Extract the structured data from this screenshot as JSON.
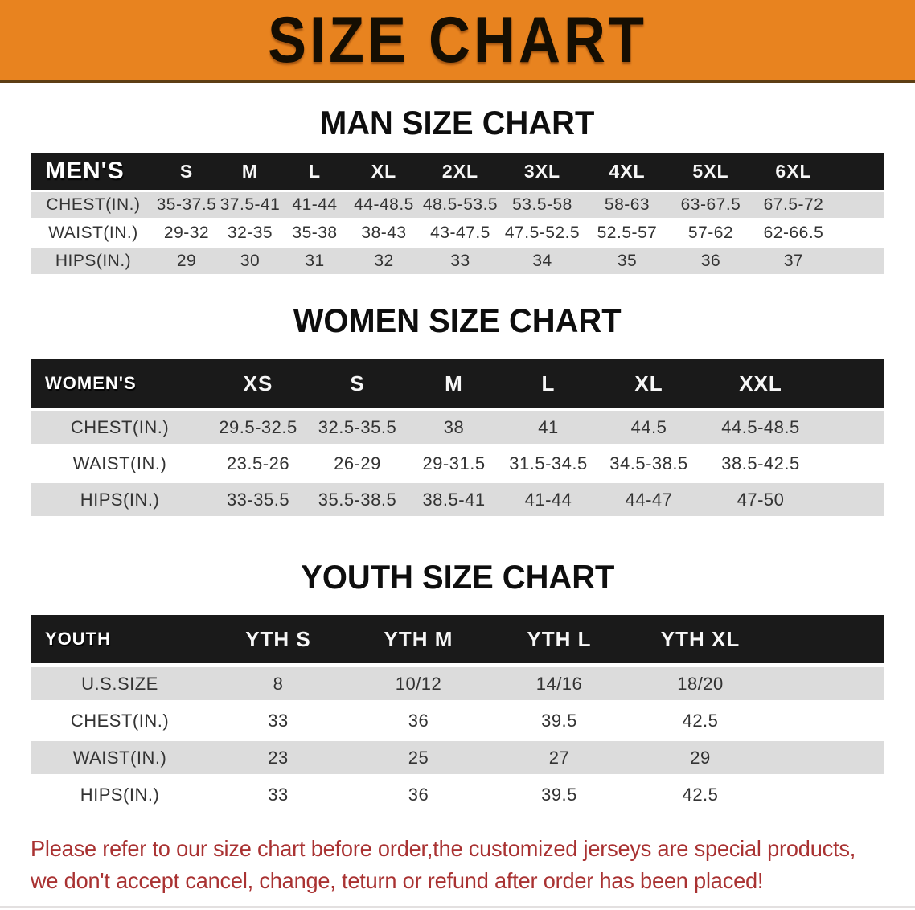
{
  "banner": {
    "title": "SIZE CHART"
  },
  "sections": {
    "men": {
      "heading": "MAN SIZE CHART",
      "header": [
        "MEN'S",
        "S",
        "M",
        "L",
        "XL",
        "2XL",
        "3XL",
        "4XL",
        "5XL",
        "6XL"
      ],
      "rows": [
        {
          "label": "CHEST(IN.)",
          "cells": [
            "35-37.5",
            "37.5-41",
            "41-44",
            "44-48.5",
            "48.5-53.5",
            "53.5-58",
            "58-63",
            "63-67.5",
            "67.5-72"
          ]
        },
        {
          "label": "WAIST(IN.)",
          "cells": [
            "29-32",
            "32-35",
            "35-38",
            "38-43",
            "43-47.5",
            "47.5-52.5",
            "52.5-57",
            "57-62",
            "62-66.5"
          ]
        },
        {
          "label": "HIPS(IN.)",
          "cells": [
            "29",
            "30",
            "31",
            "32",
            "33",
            "34",
            "35",
            "36",
            "37"
          ]
        }
      ]
    },
    "women": {
      "heading": "WOMEN SIZE CHART",
      "header": [
        "WOMEN'S",
        "XS",
        "S",
        "M",
        "L",
        "XL",
        "XXL"
      ],
      "rows": [
        {
          "label": "CHEST(IN.)",
          "cells": [
            "29.5-32.5",
            "32.5-35.5",
            "38",
            "41",
            "44.5",
            "44.5-48.5"
          ]
        },
        {
          "label": "WAIST(IN.)",
          "cells": [
            "23.5-26",
            "26-29",
            "29-31.5",
            "31.5-34.5",
            "34.5-38.5",
            "38.5-42.5"
          ]
        },
        {
          "label": "HIPS(IN.)",
          "cells": [
            "33-35.5",
            "35.5-38.5",
            "38.5-41",
            "41-44",
            "44-47",
            "47-50"
          ]
        }
      ]
    },
    "youth": {
      "heading": "YOUTH SIZE CHART",
      "header": [
        "YOUTH",
        "YTH S",
        "YTH M",
        "YTH L",
        "YTH XL"
      ],
      "rows": [
        {
          "label": "U.S.SIZE",
          "cells": [
            "8",
            "10/12",
            "14/16",
            "18/20"
          ]
        },
        {
          "label": "CHEST(IN.)",
          "cells": [
            "33",
            "36",
            "39.5",
            "42.5"
          ]
        },
        {
          "label": "WAIST(IN.)",
          "cells": [
            "23",
            "25",
            "27",
            "29"
          ]
        },
        {
          "label": "HIPS(IN.)",
          "cells": [
            "33",
            "36",
            "39.5",
            "42.5"
          ]
        }
      ]
    }
  },
  "footer": {
    "line1": "Please refer to our size chart before order,the customized jerseys are special products,",
    "line2": "we don't accept cancel, change, teturn or refund after order has been placed!"
  },
  "colors": {
    "banner_bg": "#E8831F",
    "header_band": "#1A1A1A",
    "row_gray": "#DCDCDC",
    "footer_red": "#A93232"
  }
}
